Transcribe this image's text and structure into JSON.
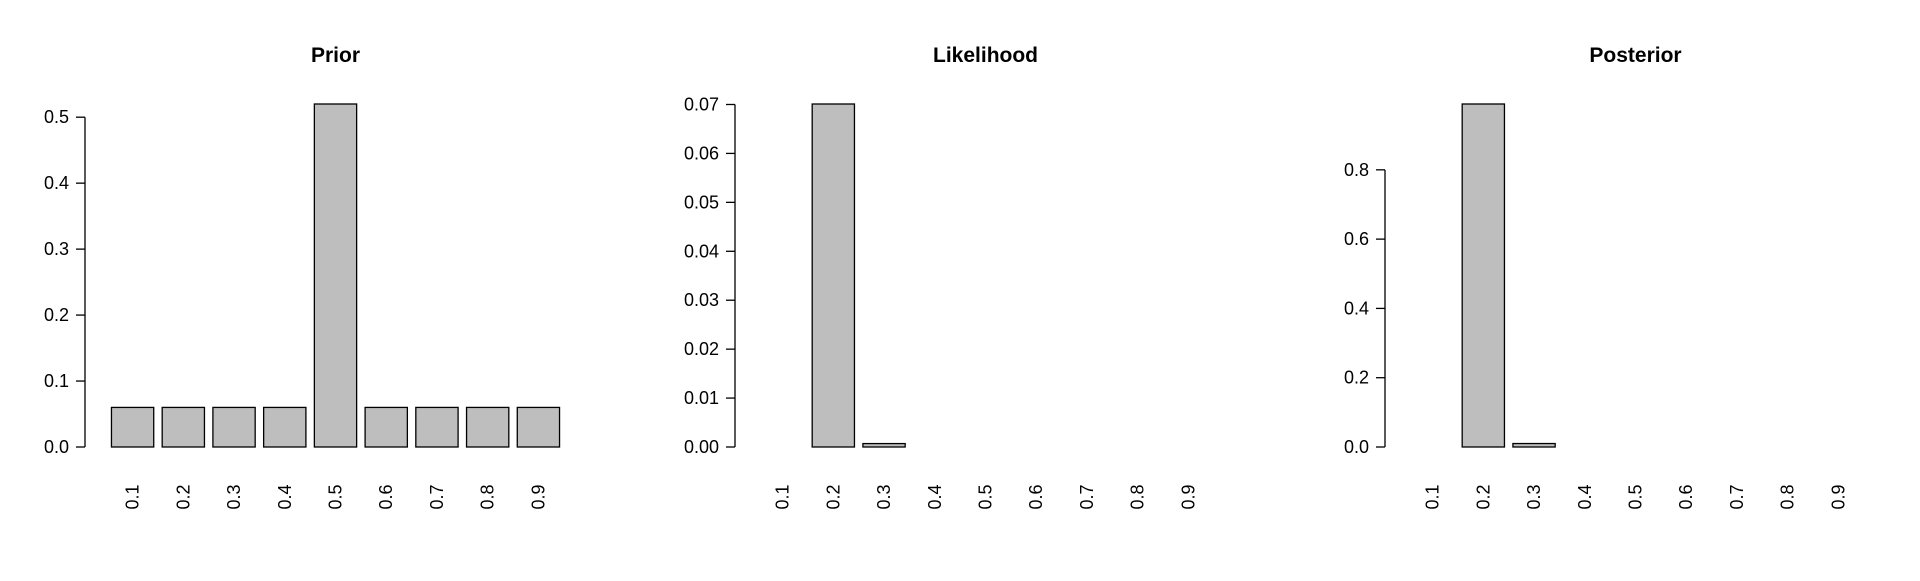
{
  "chart_data": [
    {
      "type": "bar",
      "title": "Prior",
      "categories": [
        "0.1",
        "0.2",
        "0.3",
        "0.4",
        "0.5",
        "0.6",
        "0.7",
        "0.8",
        "0.9"
      ],
      "values": [
        0.06,
        0.06,
        0.06,
        0.06,
        0.52,
        0.06,
        0.06,
        0.06,
        0.06
      ],
      "yticks": [
        "0.0",
        "0.1",
        "0.2",
        "0.3",
        "0.4",
        "0.5"
      ],
      "ylim": [
        0,
        0.52
      ],
      "xlabel": "",
      "ylabel": "",
      "bar_color": "#bebebe"
    },
    {
      "type": "bar",
      "title": "Likelihood",
      "categories": [
        "0.1",
        "0.2",
        "0.3",
        "0.4",
        "0.5",
        "0.6",
        "0.7",
        "0.8",
        "0.9"
      ],
      "values": [
        0.0,
        0.0701,
        0.0007,
        0.0,
        0.0,
        0.0,
        0.0,
        0.0,
        0.0
      ],
      "yticks": [
        "0.00",
        "0.01",
        "0.02",
        "0.03",
        "0.04",
        "0.05",
        "0.06",
        "0.07"
      ],
      "ylim": [
        0,
        0.0701
      ],
      "xlabel": "",
      "ylabel": "",
      "bar_color": "#bebebe"
    },
    {
      "type": "bar",
      "title": "Posterior",
      "categories": [
        "0.1",
        "0.2",
        "0.3",
        "0.4",
        "0.5",
        "0.6",
        "0.7",
        "0.8",
        "0.9"
      ],
      "values": [
        0.0,
        0.99,
        0.01,
        0.0,
        0.0,
        0.0,
        0.0,
        0.0,
        0.0
      ],
      "yticks": [
        "0.0",
        "0.2",
        "0.4",
        "0.6",
        "0.8"
      ],
      "ylim": [
        0,
        0.99
      ],
      "xlabel": "",
      "ylabel": "",
      "bar_color": "#bebebe"
    }
  ]
}
